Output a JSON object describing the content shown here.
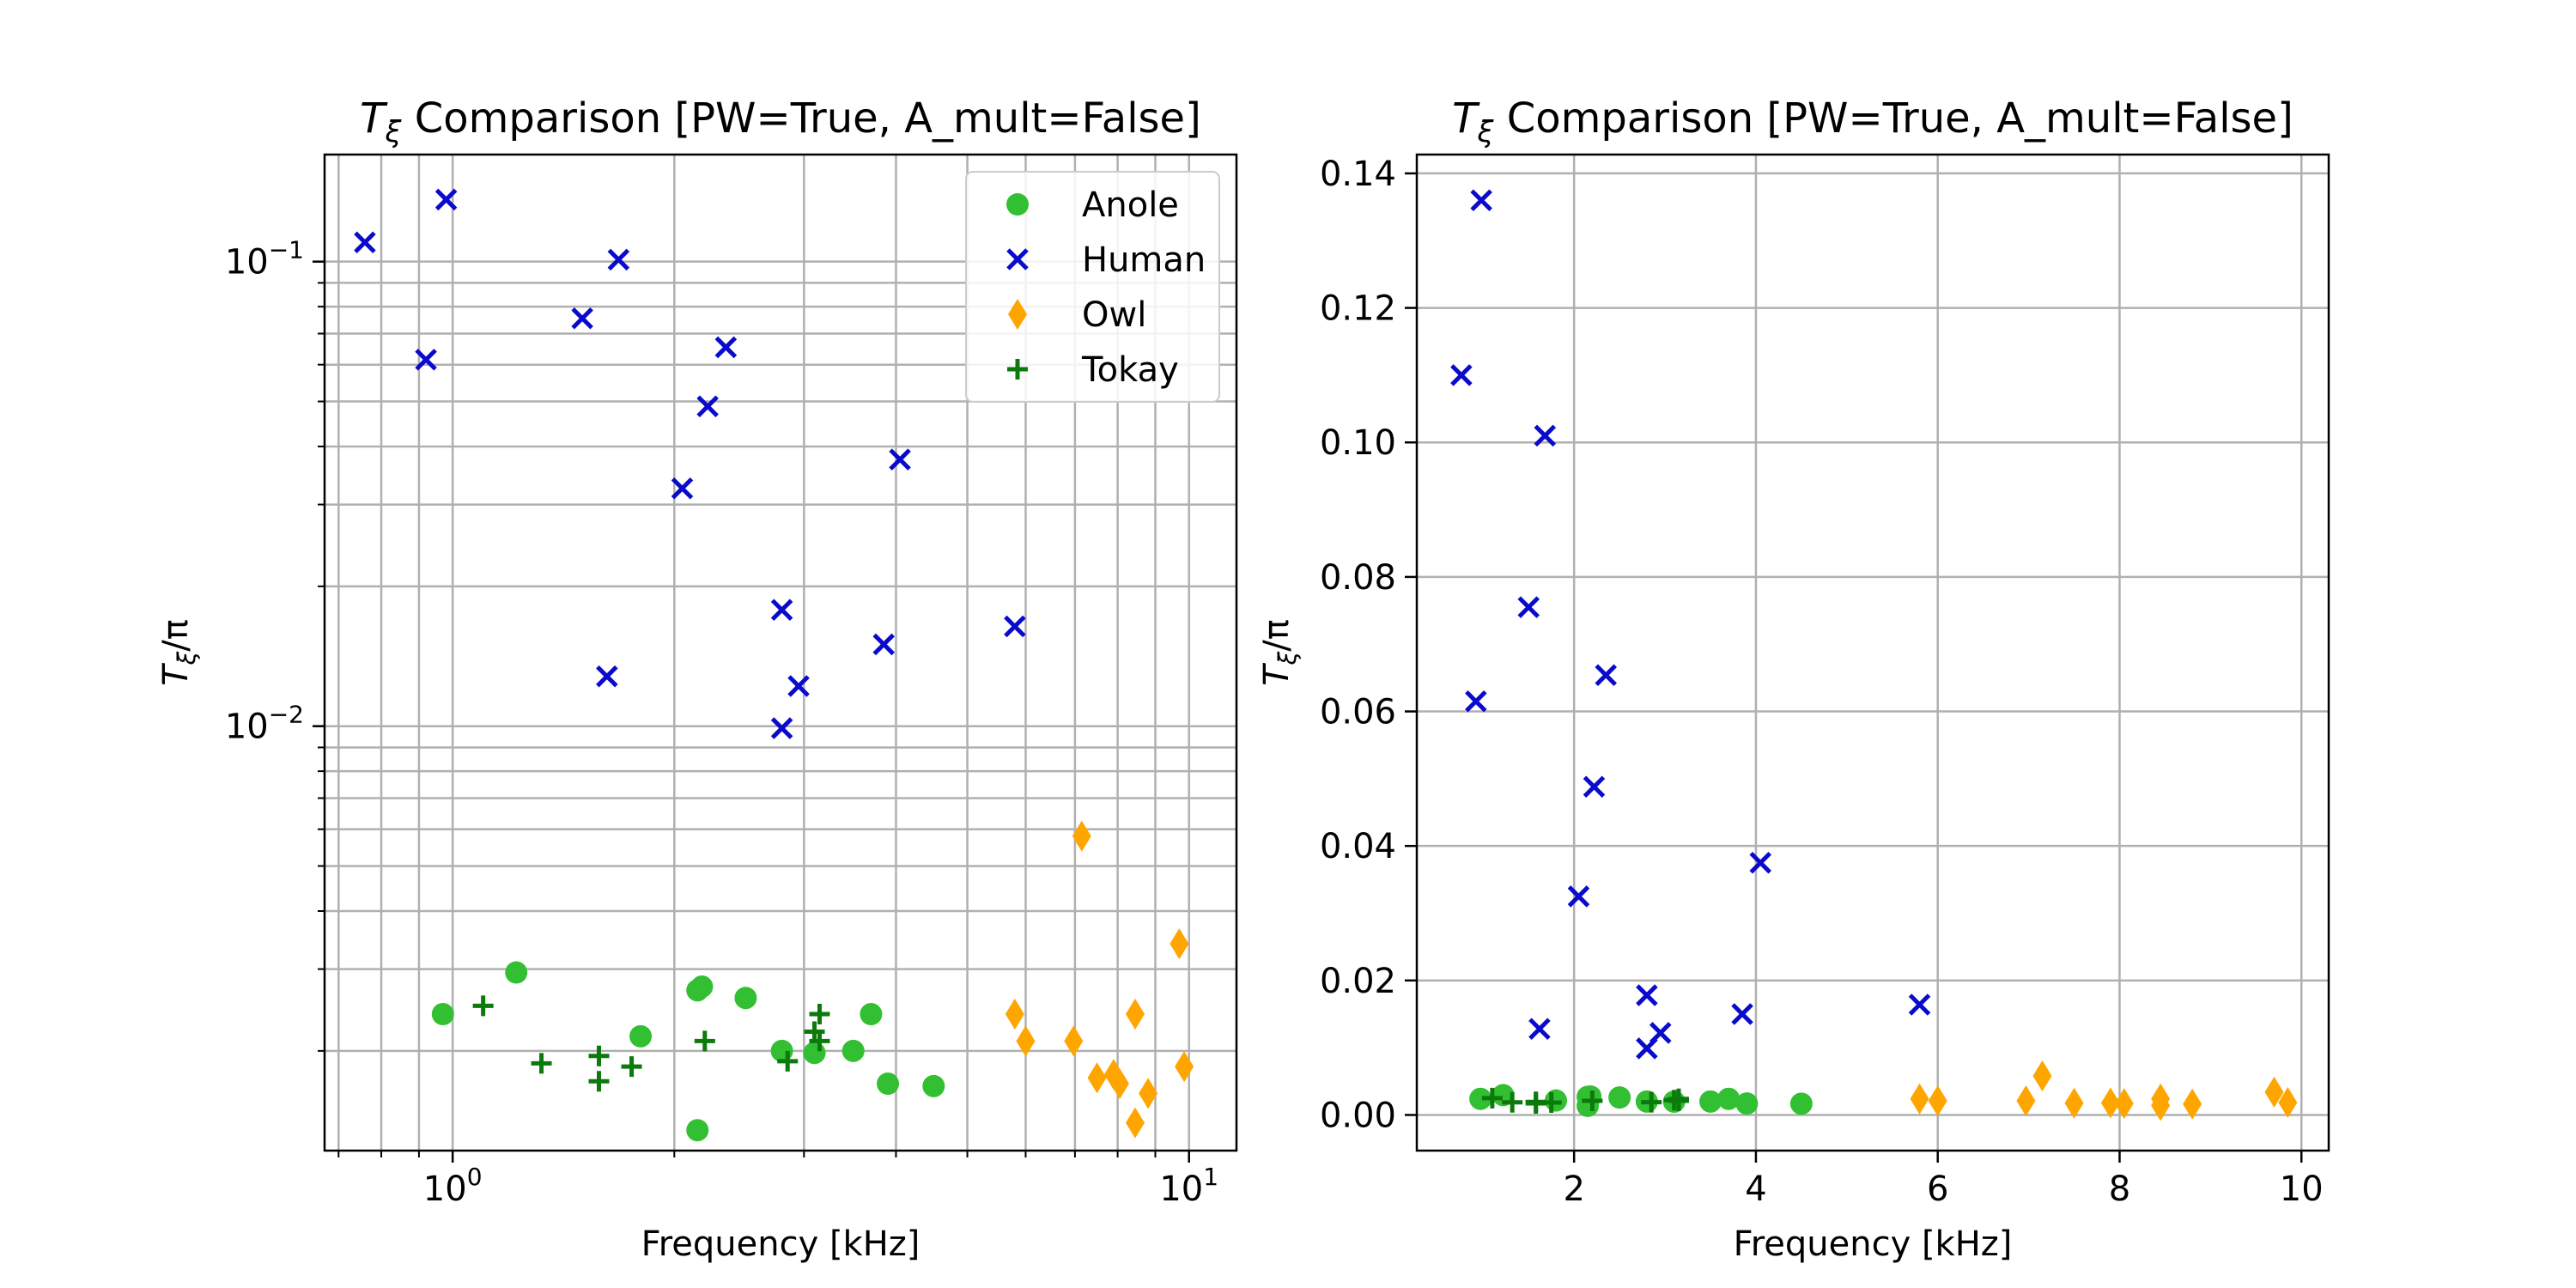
{
  "chart_data": [
    {
      "type": "scatter",
      "title": {
        "base": "T",
        "sub": "ξ",
        "rest": " Comparison [PW=True, A_mult=False]"
      },
      "xlabel": "Frequency [kHz]",
      "ylabel": {
        "base": "T",
        "sub": "ξ",
        "rest": "/π"
      },
      "xscale": "log",
      "yscale": "log",
      "xlim": [
        0.67,
        11.6
      ],
      "ylim": [
        0.00122,
        0.17
      ],
      "xticks": [
        {
          "value": 1,
          "base": "10",
          "exp": "0"
        },
        {
          "value": 10,
          "base": "10",
          "exp": "1"
        }
      ],
      "yticks": [
        {
          "value": 0.01,
          "base": "10",
          "exp": "−2"
        },
        {
          "value": 0.1,
          "base": "10",
          "exp": "−1"
        }
      ],
      "grid": true,
      "minor_grid": true,
      "legend": "top-right",
      "series": [
        {
          "name": "Anole",
          "marker": "circle",
          "color": "#32c032",
          "points": [
            [
              0.97,
              0.0024
            ],
            [
              1.22,
              0.00295
            ],
            [
              1.8,
              0.00215
            ],
            [
              2.15,
              0.0027
            ],
            [
              2.18,
              0.00275
            ],
            [
              2.15,
              0.00135
            ],
            [
              2.5,
              0.0026
            ],
            [
              2.8,
              0.002
            ],
            [
              3.1,
              0.00198
            ],
            [
              3.5,
              0.002
            ],
            [
              3.7,
              0.0024
            ],
            [
              3.9,
              0.0017
            ],
            [
              4.5,
              0.00168
            ]
          ]
        },
        {
          "name": "Human",
          "marker": "x",
          "color": "#0a0acc",
          "points": [
            [
              0.76,
              0.11
            ],
            [
              0.98,
              0.136
            ],
            [
              0.92,
              0.0615
            ],
            [
              1.5,
              0.0755
            ],
            [
              1.68,
              0.101
            ],
            [
              1.62,
              0.0128
            ],
            [
              2.05,
              0.0325
            ],
            [
              2.22,
              0.0488
            ],
            [
              2.35,
              0.0654
            ],
            [
              2.8,
              0.0178
            ],
            [
              2.8,
              0.0099
            ],
            [
              2.95,
              0.0122
            ],
            [
              3.85,
              0.015
            ],
            [
              4.05,
              0.0375
            ],
            [
              5.8,
              0.0164
            ]
          ]
        },
        {
          "name": "Owl",
          "marker": "diamond",
          "color": "#ffa500",
          "points": [
            [
              5.8,
              0.0024
            ],
            [
              6.0,
              0.0021
            ],
            [
              6.97,
              0.0021
            ],
            [
              7.15,
              0.0058
            ],
            [
              7.5,
              0.00175
            ],
            [
              7.9,
              0.00178
            ],
            [
              8.05,
              0.0017
            ],
            [
              8.45,
              0.0014
            ],
            [
              8.45,
              0.0024
            ],
            [
              8.8,
              0.00162
            ],
            [
              9.7,
              0.0034
            ],
            [
              9.85,
              0.00185
            ]
          ]
        },
        {
          "name": "Tokay",
          "marker": "plus",
          "color": "#0b7a0b",
          "points": [
            [
              1.1,
              0.0025
            ],
            [
              1.32,
              0.00188
            ],
            [
              1.58,
              0.00195
            ],
            [
              1.58,
              0.00172
            ],
            [
              1.75,
              0.00185
            ],
            [
              2.2,
              0.0021
            ],
            [
              2.85,
              0.0019
            ],
            [
              3.1,
              0.0022
            ],
            [
              3.15,
              0.0024
            ],
            [
              3.15,
              0.0021
            ]
          ]
        }
      ]
    },
    {
      "type": "scatter",
      "title": {
        "base": "T",
        "sub": "ξ",
        "rest": " Comparison [PW=True, A_mult=False]"
      },
      "xlabel": "Frequency [kHz]",
      "ylabel": {
        "base": "T",
        "sub": "ξ",
        "rest": "/π"
      },
      "xscale": "linear",
      "yscale": "linear",
      "xlim": [
        0.27,
        10.3
      ],
      "ylim": [
        -0.0053,
        0.1428
      ],
      "xticks": [
        {
          "value": 2,
          "label": "2"
        },
        {
          "value": 4,
          "label": "4"
        },
        {
          "value": 6,
          "label": "6"
        },
        {
          "value": 8,
          "label": "8"
        },
        {
          "value": 10,
          "label": "10"
        }
      ],
      "yticks": [
        {
          "value": 0,
          "label": "0.00"
        },
        {
          "value": 0.02,
          "label": "0.02"
        },
        {
          "value": 0.04,
          "label": "0.04"
        },
        {
          "value": 0.06,
          "label": "0.06"
        },
        {
          "value": 0.08,
          "label": "0.08"
        },
        {
          "value": 0.1,
          "label": "0.10"
        },
        {
          "value": 0.12,
          "label": "0.12"
        },
        {
          "value": 0.14,
          "label": "0.14"
        }
      ],
      "grid": true,
      "minor_grid": false,
      "legend": "none",
      "series": [
        {
          "name": "Anole",
          "marker": "circle",
          "color": "#32c032",
          "points": [
            [
              0.97,
              0.0024
            ],
            [
              1.22,
              0.00295
            ],
            [
              1.8,
              0.00215
            ],
            [
              2.15,
              0.0027
            ],
            [
              2.18,
              0.00275
            ],
            [
              2.15,
              0.00135
            ],
            [
              2.5,
              0.0026
            ],
            [
              2.8,
              0.002
            ],
            [
              3.1,
              0.00198
            ],
            [
              3.5,
              0.002
            ],
            [
              3.7,
              0.0024
            ],
            [
              3.9,
              0.0017
            ],
            [
              4.5,
              0.00168
            ]
          ]
        },
        {
          "name": "Human",
          "marker": "x",
          "color": "#0a0acc",
          "points": [
            [
              0.76,
              0.11
            ],
            [
              0.98,
              0.136
            ],
            [
              0.92,
              0.0615
            ],
            [
              1.5,
              0.0755
            ],
            [
              1.68,
              0.101
            ],
            [
              1.62,
              0.0128
            ],
            [
              2.05,
              0.0325
            ],
            [
              2.22,
              0.0488
            ],
            [
              2.35,
              0.0654
            ],
            [
              2.8,
              0.0178
            ],
            [
              2.8,
              0.0099
            ],
            [
              2.95,
              0.0122
            ],
            [
              3.85,
              0.015
            ],
            [
              4.05,
              0.0375
            ],
            [
              5.8,
              0.0164
            ]
          ]
        },
        {
          "name": "Owl",
          "marker": "diamond",
          "color": "#ffa500",
          "points": [
            [
              5.8,
              0.0024
            ],
            [
              6.0,
              0.0021
            ],
            [
              6.97,
              0.0021
            ],
            [
              7.15,
              0.0058
            ],
            [
              7.5,
              0.00175
            ],
            [
              7.9,
              0.00178
            ],
            [
              8.05,
              0.0017
            ],
            [
              8.45,
              0.0014
            ],
            [
              8.45,
              0.0024
            ],
            [
              8.8,
              0.00162
            ],
            [
              9.7,
              0.0034
            ],
            [
              9.85,
              0.00185
            ]
          ]
        },
        {
          "name": "Tokay",
          "marker": "plus",
          "color": "#0b7a0b",
          "points": [
            [
              1.1,
              0.0025
            ],
            [
              1.32,
              0.00188
            ],
            [
              1.58,
              0.00195
            ],
            [
              1.58,
              0.00172
            ],
            [
              1.75,
              0.00185
            ],
            [
              2.2,
              0.0021
            ],
            [
              2.85,
              0.0019
            ],
            [
              3.1,
              0.0022
            ],
            [
              3.15,
              0.0024
            ],
            [
              3.15,
              0.0021
            ]
          ]
        }
      ]
    }
  ]
}
